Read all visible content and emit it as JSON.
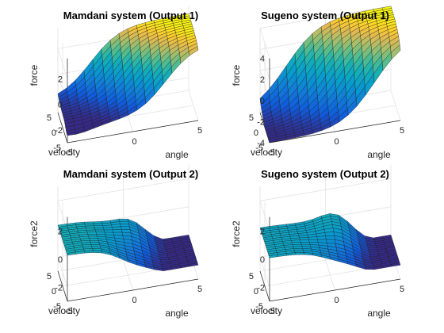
{
  "figure": {
    "background": "#ffffff"
  },
  "chart_data": [
    {
      "type": "surface",
      "title": "Mamdani system (Output 1)",
      "xlabel": "angle",
      "ylabel": "velocity",
      "zlabel": "force",
      "x_ticks": [
        "-5",
        "0",
        "5"
      ],
      "y_ticks": [
        "-5",
        "0",
        "5"
      ],
      "z_ticks": [
        "-2",
        "0",
        "2"
      ],
      "xlim": [
        -5,
        5
      ],
      "ylim": [
        -5,
        5
      ],
      "zlim": [
        -3,
        3.6
      ],
      "surface": {
        "kind": "mamdani_force",
        "range": [
          -2,
          3
        ],
        "grid": 15
      },
      "grid": true,
      "colormap": "parula"
    },
    {
      "type": "surface",
      "title": "Sugeno system (Output 1)",
      "xlabel": "angle",
      "ylabel": "velocity",
      "zlabel": "force",
      "x_ticks": [
        "-5",
        "0",
        "5"
      ],
      "y_ticks": [
        "-5",
        "0",
        "5"
      ],
      "z_ticks": [
        "-4",
        "-2",
        "0",
        "2",
        "4"
      ],
      "xlim": [
        -5,
        5
      ],
      "ylim": [
        -5,
        5
      ],
      "zlim": [
        -4,
        4
      ],
      "surface": {
        "kind": "sugeno_force",
        "range": [
          -4,
          4
        ],
        "grid": 15
      },
      "grid": true,
      "colormap": "parula"
    },
    {
      "type": "surface",
      "title": "Mamdani system (Output 2)",
      "xlabel": "angle",
      "ylabel": "velocity",
      "zlabel": "force2",
      "x_ticks": [
        "-5",
        "0",
        "5"
      ],
      "y_ticks": [
        "-5",
        "0",
        "5"
      ],
      "z_ticks": [
        "-2",
        "0",
        "2"
      ],
      "xlim": [
        -5,
        5
      ],
      "ylim": [
        -5,
        5
      ],
      "zlim": [
        -3,
        3
      ],
      "surface": {
        "kind": "mamdani_force2",
        "range": [
          -2,
          2
        ],
        "grid": 15
      },
      "grid": true,
      "colormap": "parula"
    },
    {
      "type": "surface",
      "title": "Sugeno system (Output 2)",
      "xlabel": "angle",
      "ylabel": "velocity",
      "zlabel": "force2",
      "x_ticks": [
        "-5",
        "0",
        "5"
      ],
      "y_ticks": [
        "-5",
        "0",
        "5"
      ],
      "z_ticks": [
        "-2",
        "0",
        "2"
      ],
      "xlim": [
        -5,
        5
      ],
      "ylim": [
        -5,
        5
      ],
      "zlim": [
        -3,
        3
      ],
      "surface": {
        "kind": "sugeno_force2",
        "range": [
          -2,
          2
        ],
        "grid": 15
      },
      "grid": true,
      "colormap": "parula"
    }
  ]
}
